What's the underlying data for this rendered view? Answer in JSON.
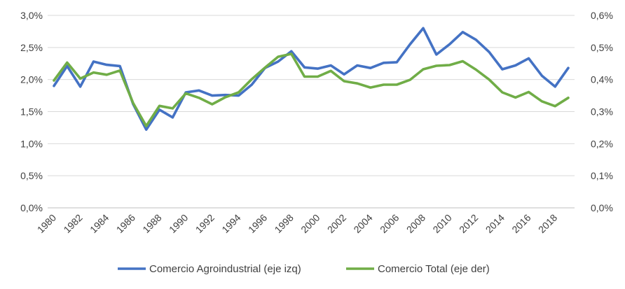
{
  "chart_data": {
    "type": "line",
    "title": "",
    "xlabel": "",
    "ylabel_left": "",
    "ylabel_right": "",
    "x": [
      1980,
      1981,
      1982,
      1983,
      1984,
      1985,
      1986,
      1987,
      1988,
      1989,
      1990,
      1991,
      1992,
      1993,
      1994,
      1995,
      1996,
      1997,
      1998,
      1999,
      2000,
      2001,
      2002,
      2003,
      2004,
      2005,
      2006,
      2007,
      2008,
      2009,
      2010,
      2011,
      2012,
      2013,
      2014,
      2015,
      2016,
      2017,
      2018,
      2019
    ],
    "x_tick_labels": [
      "1980",
      "1982",
      "1984",
      "1986",
      "1988",
      "1990",
      "1992",
      "1994",
      "1996",
      "1998",
      "2000",
      "2002",
      "2004",
      "2006",
      "2008",
      "2010",
      "2012",
      "2014",
      "2016",
      "2018"
    ],
    "ylim_left": [
      0,
      3.0
    ],
    "ylim_right": [
      0,
      0.6
    ],
    "y_left_tick_labels": [
      "0,0%",
      "0,5%",
      "1,0%",
      "1,5%",
      "2,0%",
      "2,5%",
      "3,0%"
    ],
    "y_right_tick_labels": [
      "0,0%",
      "0,1%",
      "0,2%",
      "0,3%",
      "0,4%",
      "0,5%",
      "0,6%"
    ],
    "gridlines": true,
    "legend_position": "bottom",
    "series": [
      {
        "name": "Comercio Agroindustrial (eje izq)",
        "axis": "left",
        "color": "#4472C4",
        "values": [
          1.9,
          2.21,
          1.89,
          2.28,
          2.23,
          2.21,
          1.62,
          1.22,
          1.53,
          1.41,
          1.8,
          1.83,
          1.75,
          1.76,
          1.75,
          1.92,
          2.18,
          2.28,
          2.44,
          2.19,
          2.17,
          2.22,
          2.08,
          2.22,
          2.18,
          2.26,
          2.27,
          2.55,
          2.8,
          2.39,
          2.55,
          2.74,
          2.62,
          2.43,
          2.16,
          2.22,
          2.33,
          2.06,
          1.89,
          2.18
        ]
      },
      {
        "name": "Comercio Total (eje der)",
        "axis": "right",
        "color": "#70AD47",
        "values": [
          0.397,
          0.453,
          0.403,
          0.422,
          0.415,
          0.428,
          0.327,
          0.255,
          0.318,
          0.31,
          0.357,
          0.343,
          0.323,
          0.345,
          0.36,
          0.401,
          0.437,
          0.471,
          0.48,
          0.409,
          0.409,
          0.427,
          0.395,
          0.388,
          0.375,
          0.384,
          0.384,
          0.399,
          0.432,
          0.443,
          0.445,
          0.457,
          0.431,
          0.4,
          0.36,
          0.344,
          0.361,
          0.332,
          0.317,
          0.343
        ]
      }
    ]
  }
}
